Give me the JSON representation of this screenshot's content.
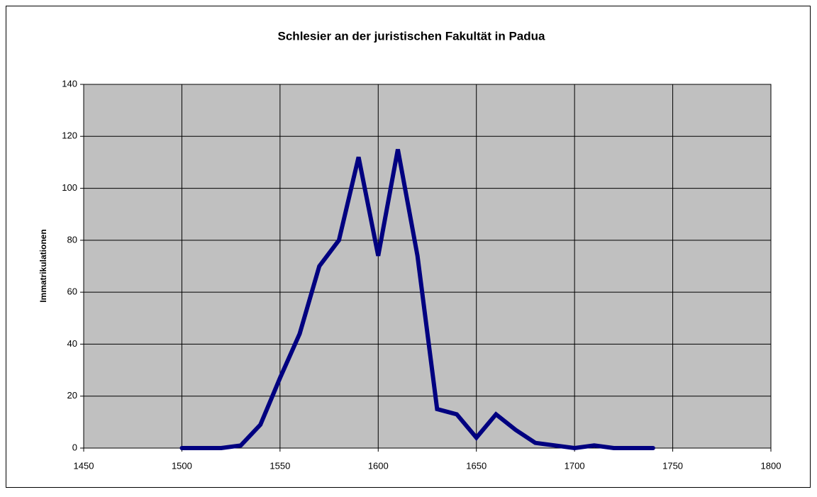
{
  "chart_data": {
    "type": "line",
    "title": "Schlesier an der juristischen Fakultät in Padua",
    "y_label": "Immatrikulationen",
    "x": [
      1500,
      1510,
      1520,
      1530,
      1540,
      1550,
      1560,
      1570,
      1580,
      1590,
      1600,
      1610,
      1620,
      1630,
      1640,
      1650,
      1660,
      1670,
      1680,
      1690,
      1700,
      1710,
      1720,
      1730,
      1740
    ],
    "series": [
      {
        "color": "#000080",
        "values": [
          0,
          0,
          0,
          1,
          9,
          27,
          44,
          70,
          80,
          112,
          74,
          115,
          74,
          15,
          13,
          4,
          13,
          7,
          2,
          1,
          0,
          1,
          0,
          0,
          0
        ]
      }
    ],
    "xlim": [
      1450,
      1800
    ],
    "xticks": [
      1450,
      1500,
      1550,
      1600,
      1650,
      1700,
      1750,
      1800
    ],
    "ylim": [
      0,
      140
    ],
    "yticks": [
      0,
      20,
      40,
      60,
      80,
      100,
      120,
      140
    ],
    "grid": true,
    "plot_background": "#c0c0c0"
  }
}
